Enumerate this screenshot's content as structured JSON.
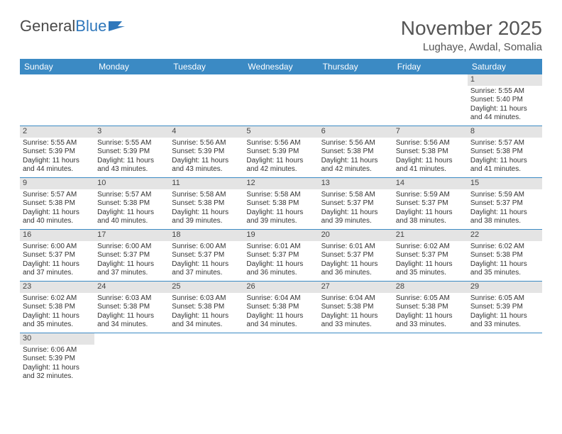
{
  "brand": {
    "name1": "General",
    "name2": "Blue"
  },
  "title": "November 2025",
  "location": "Lughaye, Awdal, Somalia",
  "colors": {
    "header_bg": "#3b8ac4",
    "header_text": "#ffffff",
    "daynum_bg": "#e4e4e4",
    "border": "#3b8ac4",
    "text": "#333333",
    "brand_blue": "#2f77bb"
  },
  "weekdays": [
    "Sunday",
    "Monday",
    "Tuesday",
    "Wednesday",
    "Thursday",
    "Friday",
    "Saturday"
  ],
  "weeks": [
    [
      null,
      null,
      null,
      null,
      null,
      null,
      {
        "n": "1",
        "sr": "5:55 AM",
        "ss": "5:40 PM",
        "dl": "11 hours and 44 minutes."
      }
    ],
    [
      {
        "n": "2",
        "sr": "5:55 AM",
        "ss": "5:39 PM",
        "dl": "11 hours and 44 minutes."
      },
      {
        "n": "3",
        "sr": "5:55 AM",
        "ss": "5:39 PM",
        "dl": "11 hours and 43 minutes."
      },
      {
        "n": "4",
        "sr": "5:56 AM",
        "ss": "5:39 PM",
        "dl": "11 hours and 43 minutes."
      },
      {
        "n": "5",
        "sr": "5:56 AM",
        "ss": "5:39 PM",
        "dl": "11 hours and 42 minutes."
      },
      {
        "n": "6",
        "sr": "5:56 AM",
        "ss": "5:38 PM",
        "dl": "11 hours and 42 minutes."
      },
      {
        "n": "7",
        "sr": "5:56 AM",
        "ss": "5:38 PM",
        "dl": "11 hours and 41 minutes."
      },
      {
        "n": "8",
        "sr": "5:57 AM",
        "ss": "5:38 PM",
        "dl": "11 hours and 41 minutes."
      }
    ],
    [
      {
        "n": "9",
        "sr": "5:57 AM",
        "ss": "5:38 PM",
        "dl": "11 hours and 40 minutes."
      },
      {
        "n": "10",
        "sr": "5:57 AM",
        "ss": "5:38 PM",
        "dl": "11 hours and 40 minutes."
      },
      {
        "n": "11",
        "sr": "5:58 AM",
        "ss": "5:38 PM",
        "dl": "11 hours and 39 minutes."
      },
      {
        "n": "12",
        "sr": "5:58 AM",
        "ss": "5:38 PM",
        "dl": "11 hours and 39 minutes."
      },
      {
        "n": "13",
        "sr": "5:58 AM",
        "ss": "5:37 PM",
        "dl": "11 hours and 39 minutes."
      },
      {
        "n": "14",
        "sr": "5:59 AM",
        "ss": "5:37 PM",
        "dl": "11 hours and 38 minutes."
      },
      {
        "n": "15",
        "sr": "5:59 AM",
        "ss": "5:37 PM",
        "dl": "11 hours and 38 minutes."
      }
    ],
    [
      {
        "n": "16",
        "sr": "6:00 AM",
        "ss": "5:37 PM",
        "dl": "11 hours and 37 minutes."
      },
      {
        "n": "17",
        "sr": "6:00 AM",
        "ss": "5:37 PM",
        "dl": "11 hours and 37 minutes."
      },
      {
        "n": "18",
        "sr": "6:00 AM",
        "ss": "5:37 PM",
        "dl": "11 hours and 37 minutes."
      },
      {
        "n": "19",
        "sr": "6:01 AM",
        "ss": "5:37 PM",
        "dl": "11 hours and 36 minutes."
      },
      {
        "n": "20",
        "sr": "6:01 AM",
        "ss": "5:37 PM",
        "dl": "11 hours and 36 minutes."
      },
      {
        "n": "21",
        "sr": "6:02 AM",
        "ss": "5:37 PM",
        "dl": "11 hours and 35 minutes."
      },
      {
        "n": "22",
        "sr": "6:02 AM",
        "ss": "5:38 PM",
        "dl": "11 hours and 35 minutes."
      }
    ],
    [
      {
        "n": "23",
        "sr": "6:02 AM",
        "ss": "5:38 PM",
        "dl": "11 hours and 35 minutes."
      },
      {
        "n": "24",
        "sr": "6:03 AM",
        "ss": "5:38 PM",
        "dl": "11 hours and 34 minutes."
      },
      {
        "n": "25",
        "sr": "6:03 AM",
        "ss": "5:38 PM",
        "dl": "11 hours and 34 minutes."
      },
      {
        "n": "26",
        "sr": "6:04 AM",
        "ss": "5:38 PM",
        "dl": "11 hours and 34 minutes."
      },
      {
        "n": "27",
        "sr": "6:04 AM",
        "ss": "5:38 PM",
        "dl": "11 hours and 33 minutes."
      },
      {
        "n": "28",
        "sr": "6:05 AM",
        "ss": "5:38 PM",
        "dl": "11 hours and 33 minutes."
      },
      {
        "n": "29",
        "sr": "6:05 AM",
        "ss": "5:39 PM",
        "dl": "11 hours and 33 minutes."
      }
    ],
    [
      {
        "n": "30",
        "sr": "6:06 AM",
        "ss": "5:39 PM",
        "dl": "11 hours and 32 minutes."
      },
      null,
      null,
      null,
      null,
      null,
      null
    ]
  ],
  "labels": {
    "sunrise": "Sunrise:",
    "sunset": "Sunset:",
    "daylight": "Daylight:"
  }
}
